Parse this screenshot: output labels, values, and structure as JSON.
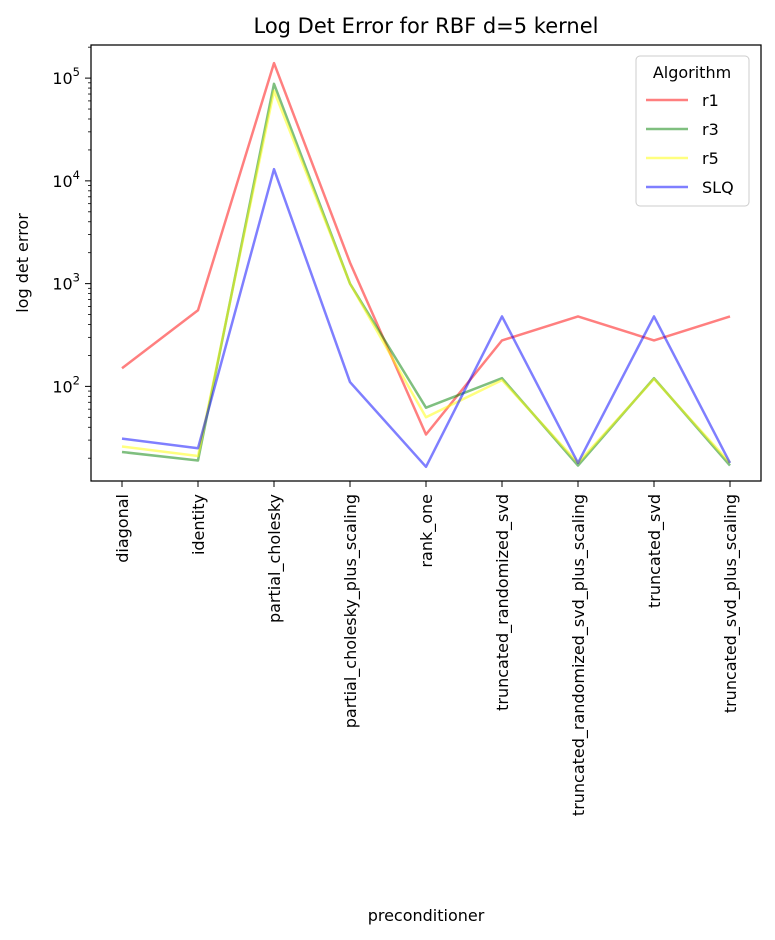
{
  "chart_data": {
    "type": "line",
    "title": "Log Det Error for RBF d=5 kernel",
    "xlabel": "preconditioner",
    "ylabel": "log det error",
    "yscale": "log",
    "ylim": [
      12,
      210000
    ],
    "y_ticks": [
      {
        "value": 100,
        "base": "10",
        "exp": "2"
      },
      {
        "value": 1000,
        "base": "10",
        "exp": "3"
      },
      {
        "value": 10000,
        "base": "10",
        "exp": "4"
      },
      {
        "value": 100000,
        "base": "10",
        "exp": "5"
      }
    ],
    "categories": [
      "diagonal",
      "identity",
      "partial_cholesky",
      "partial_cholesky_plus_scaling",
      "rank_one",
      "truncated_randomized_svd",
      "truncated_randomized_svd_plus_scaling",
      "truncated_svd",
      "truncated_svd_plus_scaling"
    ],
    "legend": {
      "title": "Algorithm",
      "placement": "top-right"
    },
    "series": [
      {
        "name": "r1",
        "color": "#ff0000",
        "values": [
          150,
          550,
          140000,
          1600,
          34,
          280,
          480,
          280,
          480
        ]
      },
      {
        "name": "r3",
        "color": "#008000",
        "values": [
          23,
          19,
          88000,
          1000,
          62,
          120,
          17,
          120,
          17
        ]
      },
      {
        "name": "r5",
        "color": "#ffff00",
        "values": [
          26,
          21,
          75000,
          1000,
          50,
          115,
          18,
          118,
          18
        ]
      },
      {
        "name": "SLQ",
        "color": "#0000ff",
        "values": [
          31,
          25,
          13000,
          110,
          16.5,
          480,
          18,
          480,
          18
        ]
      }
    ]
  }
}
